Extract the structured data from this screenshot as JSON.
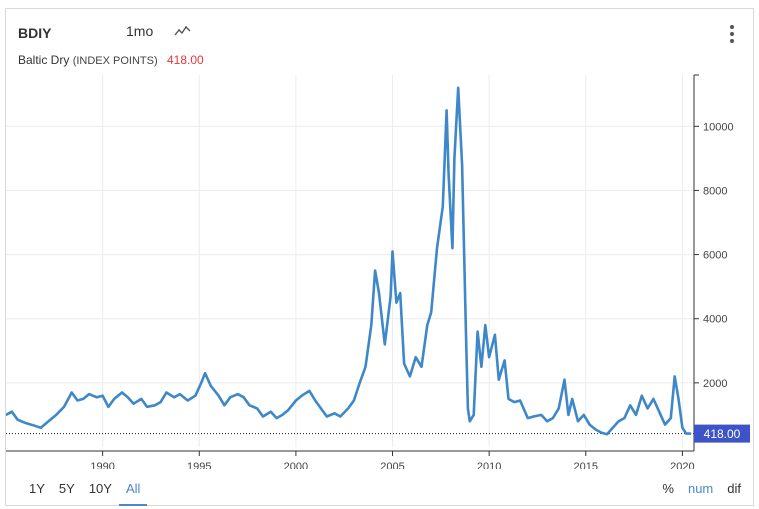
{
  "header": {
    "ticker": "BDIY",
    "interval": "1mo",
    "chart_type_icon": "line-chart-icon",
    "menu_icon": "kebab-menu-icon"
  },
  "subtitle": {
    "name": "Baltic Dry",
    "units": "(INDEX POINTS)",
    "last_value": "418.00"
  },
  "colors": {
    "line": "#3e87c8",
    "last_value_text": "#e0393e",
    "price_tag": "#3d53c6",
    "grid": "#ececec",
    "active": "#4a88c7"
  },
  "ranges": [
    {
      "label": "1Y",
      "active": false
    },
    {
      "label": "5Y",
      "active": false
    },
    {
      "label": "10Y",
      "active": false
    },
    {
      "label": "All",
      "active": true
    }
  ],
  "modes": [
    {
      "label": "%",
      "active": false
    },
    {
      "label": "num",
      "active": true
    },
    {
      "label": "dif",
      "active": false
    }
  ],
  "chart_data": {
    "type": "line",
    "title": "",
    "xlabel": "",
    "ylabel": "",
    "xlim": [
      1985.0,
      2020.6
    ],
    "ylim": [
      0,
      11600
    ],
    "x_ticks": [
      1990,
      1995,
      2000,
      2005,
      2010,
      2015,
      2020
    ],
    "y_ticks": [
      2000,
      4000,
      6000,
      8000,
      10000
    ],
    "y_axis_position": "right",
    "grid": true,
    "last_value_label": "418.00",
    "last_value_line": 418,
    "series": [
      {
        "x": [
          1985.0,
          1985.3,
          1985.6,
          1986.0,
          1986.4,
          1986.8,
          1987.2,
          1987.6,
          1988.0,
          1988.4,
          1988.7,
          1989.0,
          1989.3,
          1989.7,
          1990.0,
          1990.3,
          1990.6,
          1991.0,
          1991.3,
          1991.6,
          1992.0,
          1992.3,
          1992.7,
          1993.0,
          1993.3,
          1993.7,
          1994.0,
          1994.4,
          1994.8,
          1995.1,
          1995.3,
          1995.6,
          1996.0,
          1996.3,
          1996.6,
          1997.0,
          1997.3,
          1997.6,
          1998.0,
          1998.3,
          1998.7,
          1999.0,
          1999.3,
          1999.6,
          2000.0,
          2000.3,
          2000.7,
          2001.0,
          2001.3,
          2001.6,
          2002.0,
          2002.3,
          2002.7,
          2003.0,
          2003.3,
          2003.6,
          2003.9,
          2004.1,
          2004.3,
          2004.6,
          2004.9,
          2005.0,
          2005.2,
          2005.4,
          2005.6,
          2005.9,
          2006.2,
          2006.5,
          2006.8,
          2007.0,
          2007.3,
          2007.6,
          2007.8,
          2007.9,
          2008.1,
          2008.2,
          2008.4,
          2008.6,
          2008.8,
          2008.9,
          2009.0,
          2009.2,
          2009.4,
          2009.6,
          2009.8,
          2010.0,
          2010.3,
          2010.5,
          2010.8,
          2011.0,
          2011.3,
          2011.6,
          2012.0,
          2012.3,
          2012.7,
          2013.0,
          2013.3,
          2013.6,
          2013.9,
          2014.1,
          2014.3,
          2014.6,
          2014.9,
          2015.2,
          2015.5,
          2015.8,
          2016.1,
          2016.4,
          2016.7,
          2017.0,
          2017.3,
          2017.6,
          2017.9,
          2018.2,
          2018.5,
          2018.8,
          2019.1,
          2019.4,
          2019.6,
          2019.8,
          2020.0,
          2020.2,
          2020.4
        ],
        "values": [
          1000,
          1100,
          850,
          750,
          680,
          600,
          800,
          1000,
          1250,
          1700,
          1450,
          1500,
          1650,
          1550,
          1600,
          1250,
          1500,
          1700,
          1550,
          1350,
          1500,
          1250,
          1300,
          1400,
          1700,
          1550,
          1650,
          1450,
          1600,
          2000,
          2300,
          1900,
          1600,
          1300,
          1550,
          1650,
          1550,
          1300,
          1200,
          950,
          1100,
          900,
          1000,
          1150,
          1450,
          1600,
          1750,
          1450,
          1200,
          950,
          1050,
          950,
          1200,
          1450,
          2000,
          2500,
          3800,
          5500,
          4800,
          3200,
          4700,
          6100,
          4500,
          4800,
          2600,
          2200,
          2800,
          2500,
          3800,
          4200,
          6200,
          7500,
          10500,
          8500,
          6200,
          9000,
          11200,
          8800,
          3500,
          1200,
          800,
          1000,
          3600,
          2500,
          3800,
          2800,
          3500,
          2100,
          2700,
          1500,
          1400,
          1450,
          900,
          950,
          1000,
          800,
          900,
          1200,
          2100,
          1000,
          1500,
          800,
          1000,
          700,
          550,
          450,
          400,
          600,
          800,
          900,
          1300,
          1000,
          1600,
          1200,
          1500,
          1100,
          700,
          900,
          2200,
          1500,
          600,
          418,
          418
        ]
      }
    ]
  }
}
